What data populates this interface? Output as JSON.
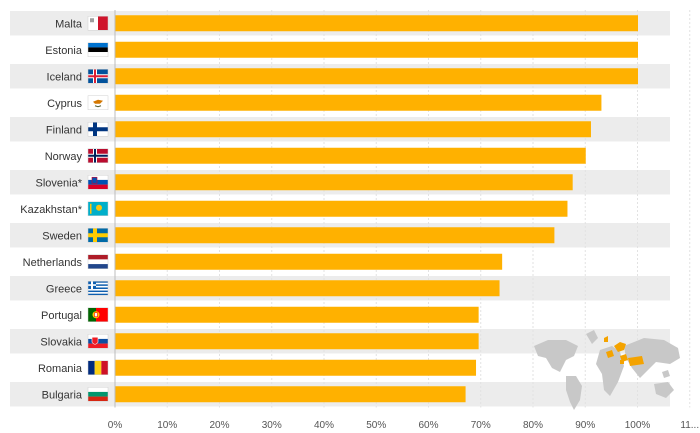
{
  "chart_data": {
    "type": "bar",
    "orientation": "horizontal",
    "categories": [
      "Malta",
      "Estonia",
      "Iceland",
      "Cyprus",
      "Finland",
      "Norway",
      "Slovenia*",
      "Kazakhstan*",
      "Sweden",
      "Netherlands",
      "Greece",
      "Portugal",
      "Slovakia",
      "Romania",
      "Bulgaria"
    ],
    "values": [
      100,
      100,
      100,
      93,
      91,
      90,
      87.5,
      86.5,
      84,
      74,
      73.5,
      69.5,
      69.5,
      69,
      67
    ],
    "xlim": [
      0,
      110
    ],
    "x_ticks": [
      "0%",
      "10%",
      "20%",
      "30%",
      "40%",
      "50%",
      "60%",
      "70%",
      "80%",
      "90%",
      "100%",
      "11..."
    ],
    "bar_color": "#ffb100",
    "row_band_color": "#ececec",
    "grid": true,
    "title": "",
    "xlabel": "",
    "ylabel": "",
    "flag_icons": [
      "malta-flag-icon",
      "estonia-flag-icon",
      "iceland-flag-icon",
      "cyprus-flag-icon",
      "finland-flag-icon",
      "norway-flag-icon",
      "slovenia-flag-icon",
      "kazakhstan-flag-icon",
      "sweden-flag-icon",
      "netherlands-flag-icon",
      "greece-flag-icon",
      "portugal-flag-icon",
      "slovakia-flag-icon",
      "romania-flag-icon",
      "bulgaria-flag-icon"
    ],
    "decoration": "world-map-icon"
  }
}
